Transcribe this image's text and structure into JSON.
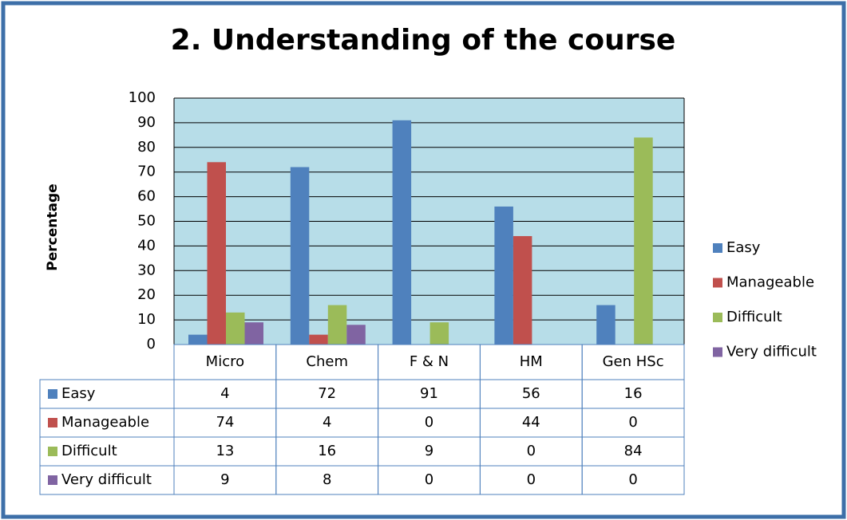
{
  "chart_data": {
    "type": "bar",
    "title": "2. Understanding of the course",
    "y_label": "Percentage",
    "categories": [
      "Micro",
      "Chem",
      "F & N",
      "HM",
      "Gen HSc"
    ],
    "series": [
      {
        "name": "Easy",
        "color": "#4f81bd",
        "values": [
          4,
          72,
          91,
          56,
          16
        ]
      },
      {
        "name": "Manageable",
        "color": "#c0504d",
        "values": [
          74,
          4,
          0,
          44,
          0
        ]
      },
      {
        "name": "Difficult",
        "color": "#9bbb59",
        "values": [
          13,
          16,
          9,
          0,
          84
        ]
      },
      {
        "name": "Very difficult",
        "color": "#8064a2",
        "values": [
          9,
          8,
          0,
          0,
          0
        ]
      }
    ],
    "ylim": [
      0,
      100
    ],
    "yticks": [
      0,
      10,
      20,
      30,
      40,
      50,
      60,
      70,
      80,
      90,
      100
    ],
    "grid": true,
    "legend": "right",
    "data_table": true
  }
}
